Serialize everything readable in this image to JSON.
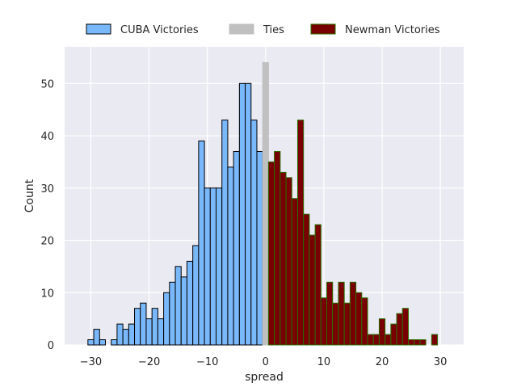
{
  "chart_data": {
    "type": "bar",
    "title": "",
    "xlabel": "spread",
    "ylabel": "Count",
    "xlim": [
      -34.5,
      34
    ],
    "ylim": [
      0,
      57
    ],
    "xticks": [
      -30,
      -20,
      -10,
      0,
      10,
      20,
      30
    ],
    "xtick_labels": [
      "−30",
      "−20",
      "−10",
      "0",
      "10",
      "20",
      "30"
    ],
    "yticks": [
      0,
      10,
      20,
      30,
      40,
      50
    ],
    "ytick_labels": [
      "0",
      "10",
      "20",
      "30",
      "40",
      "50"
    ],
    "grid": true,
    "legend_position": "top-center",
    "background_color": "#eaeaf2",
    "series": [
      {
        "name": "CUBA Victories",
        "color": "#7ab8fc",
        "edge_color": "#000000",
        "bins": [
          {
            "x": -30.5,
            "count": 1
          },
          {
            "x": -29.5,
            "count": 3
          },
          {
            "x": -28.5,
            "count": 1
          },
          {
            "x": -26.5,
            "count": 1
          },
          {
            "x": -25.5,
            "count": 4
          },
          {
            "x": -24.5,
            "count": 3
          },
          {
            "x": -23.5,
            "count": 4
          },
          {
            "x": -22.5,
            "count": 7
          },
          {
            "x": -21.5,
            "count": 8
          },
          {
            "x": -20.5,
            "count": 5
          },
          {
            "x": -19.5,
            "count": 7
          },
          {
            "x": -18.5,
            "count": 5
          },
          {
            "x": -17.5,
            "count": 10
          },
          {
            "x": -16.5,
            "count": 12
          },
          {
            "x": -15.5,
            "count": 15
          },
          {
            "x": -14.5,
            "count": 13
          },
          {
            "x": -13.5,
            "count": 16
          },
          {
            "x": -12.5,
            "count": 19
          },
          {
            "x": -11.5,
            "count": 39
          },
          {
            "x": -10.5,
            "count": 30
          },
          {
            "x": -9.5,
            "count": 30
          },
          {
            "x": -8.5,
            "count": 30
          },
          {
            "x": -7.5,
            "count": 43
          },
          {
            "x": -6.5,
            "count": 34
          },
          {
            "x": -5.5,
            "count": 37
          },
          {
            "x": -4.5,
            "count": 50
          },
          {
            "x": -3.5,
            "count": 50
          },
          {
            "x": -2.5,
            "count": 43
          },
          {
            "x": -1.5,
            "count": 37
          }
        ]
      },
      {
        "name": "Ties",
        "color": "#c0c0c0",
        "edge_color": "#c0c0c0",
        "bins": [
          {
            "x": -0.5,
            "count": 54
          }
        ]
      },
      {
        "name": "Newman Victories",
        "color": "#780000",
        "edge_color": "#2a6e00",
        "bins": [
          {
            "x": 0.5,
            "count": 35
          },
          {
            "x": 1.5,
            "count": 37
          },
          {
            "x": 2.5,
            "count": 33
          },
          {
            "x": 3.5,
            "count": 32
          },
          {
            "x": 4.5,
            "count": 28
          },
          {
            "x": 5.5,
            "count": 43
          },
          {
            "x": 6.5,
            "count": 25
          },
          {
            "x": 7.5,
            "count": 21
          },
          {
            "x": 8.5,
            "count": 23
          },
          {
            "x": 9.5,
            "count": 9
          },
          {
            "x": 10.5,
            "count": 12
          },
          {
            "x": 11.5,
            "count": 8
          },
          {
            "x": 12.5,
            "count": 12
          },
          {
            "x": 13.5,
            "count": 8
          },
          {
            "x": 14.5,
            "count": 12
          },
          {
            "x": 15.5,
            "count": 10
          },
          {
            "x": 16.5,
            "count": 9
          },
          {
            "x": 17.5,
            "count": 2
          },
          {
            "x": 18.5,
            "count": 2
          },
          {
            "x": 19.5,
            "count": 5
          },
          {
            "x": 20.5,
            "count": 2
          },
          {
            "x": 21.5,
            "count": 4
          },
          {
            "x": 22.5,
            "count": 6
          },
          {
            "x": 23.5,
            "count": 7
          },
          {
            "x": 24.5,
            "count": 1
          },
          {
            "x": 25.5,
            "count": 1
          },
          {
            "x": 26.5,
            "count": 1
          },
          {
            "x": 28.5,
            "count": 2
          }
        ]
      }
    ]
  }
}
